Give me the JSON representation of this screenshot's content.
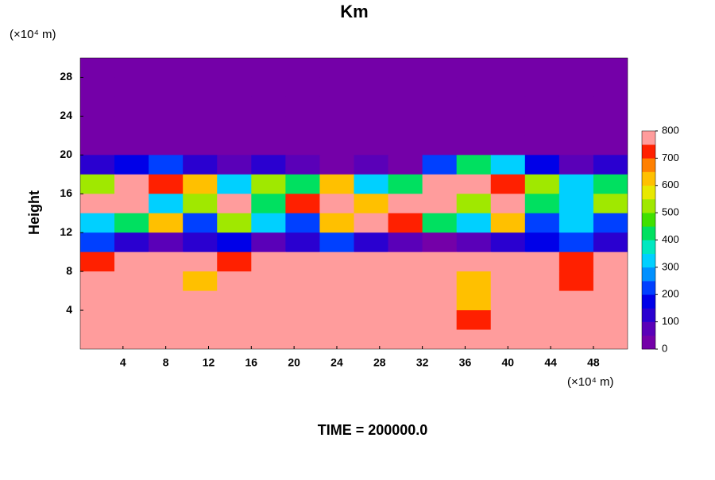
{
  "chart_data": {
    "type": "contour",
    "title": "Km",
    "y_unit": "(×10⁴ m)",
    "x_unit": "(×10⁴ m)",
    "ylabel": "Height",
    "footer": "TIME = 200000.0",
    "xlim": [
      0,
      51.2
    ],
    "ylim": [
      0,
      30
    ],
    "xticks": [
      4,
      8,
      12,
      16,
      20,
      24,
      28,
      32,
      36,
      40,
      44,
      48
    ],
    "yticks": [
      4,
      8,
      12,
      16,
      20,
      24,
      28
    ],
    "zlim": [
      0,
      800
    ],
    "zticks": [
      0,
      100,
      200,
      300,
      400,
      500,
      600,
      700,
      800
    ],
    "colors": [
      "#7400a8",
      "#5a00b8",
      "#2a00d0",
      "#0000e8",
      "#0040ff",
      "#0090ff",
      "#00d0ff",
      "#00e8c0",
      "#00e060",
      "#40e000",
      "#a0e800",
      "#e8e800",
      "#ffc000",
      "#ff8000",
      "#ff2000",
      "#ff9c9c"
    ],
    "x": [
      1.6,
      4.8,
      8,
      11.2,
      14.4,
      17.6,
      20.8,
      24,
      27.2,
      30.4,
      33.6,
      36.8,
      40,
      43.2,
      46.4,
      49.6
    ],
    "y": [
      29,
      27,
      25,
      23,
      21,
      19,
      17,
      15,
      13,
      11,
      9,
      7,
      5,
      3,
      1
    ],
    "z": [
      [
        0,
        0,
        0,
        0,
        0,
        0,
        0,
        0,
        0,
        0,
        0,
        0,
        0,
        0,
        0,
        0
      ],
      [
        0,
        0,
        0,
        0,
        0,
        0,
        0,
        0,
        0,
        0,
        0,
        0,
        0,
        0,
        0,
        0
      ],
      [
        0,
        0,
        0,
        0,
        0,
        0,
        0,
        0,
        0,
        0,
        0,
        0,
        0,
        0,
        0,
        0
      ],
      [
        0,
        0,
        0,
        0,
        0,
        0,
        0,
        0,
        0,
        0,
        0,
        0,
        0,
        0,
        0,
        0
      ],
      [
        0,
        0,
        0,
        0,
        0,
        0,
        0,
        0,
        0,
        0,
        0,
        0,
        0,
        0,
        0,
        0
      ],
      [
        100,
        150,
        200,
        100,
        50,
        100,
        50,
        0,
        50,
        0,
        200,
        400,
        300,
        150,
        50,
        100
      ],
      [
        500,
        800,
        700,
        600,
        300,
        500,
        400,
        600,
        300,
        400,
        800,
        800,
        700,
        500,
        300,
        400
      ],
      [
        800,
        800,
        300,
        500,
        800,
        400,
        700,
        800,
        600,
        800,
        800,
        500,
        800,
        400,
        300,
        500
      ],
      [
        300,
        400,
        600,
        200,
        500,
        300,
        200,
        600,
        800,
        700,
        400,
        300,
        600,
        200,
        300,
        200
      ],
      [
        200,
        100,
        50,
        100,
        150,
        50,
        100,
        200,
        100,
        50,
        0,
        50,
        100,
        150,
        200,
        100
      ],
      [
        700,
        800,
        800,
        800,
        700,
        800,
        800,
        800,
        800,
        800,
        800,
        800,
        800,
        800,
        700,
        800
      ],
      [
        800,
        800,
        800,
        600,
        800,
        800,
        800,
        800,
        800,
        800,
        750,
        600,
        800,
        800,
        700,
        800
      ],
      [
        800,
        800,
        750,
        800,
        800,
        800,
        800,
        800,
        800,
        750,
        800,
        600,
        800,
        800,
        800,
        800
      ],
      [
        800,
        800,
        800,
        800,
        800,
        800,
        800,
        800,
        800,
        800,
        800,
        700,
        800,
        800,
        800,
        800
      ],
      [
        800,
        800,
        800,
        800,
        800,
        800,
        800,
        800,
        800,
        800,
        800,
        800,
        800,
        800,
        800,
        800
      ]
    ]
  }
}
